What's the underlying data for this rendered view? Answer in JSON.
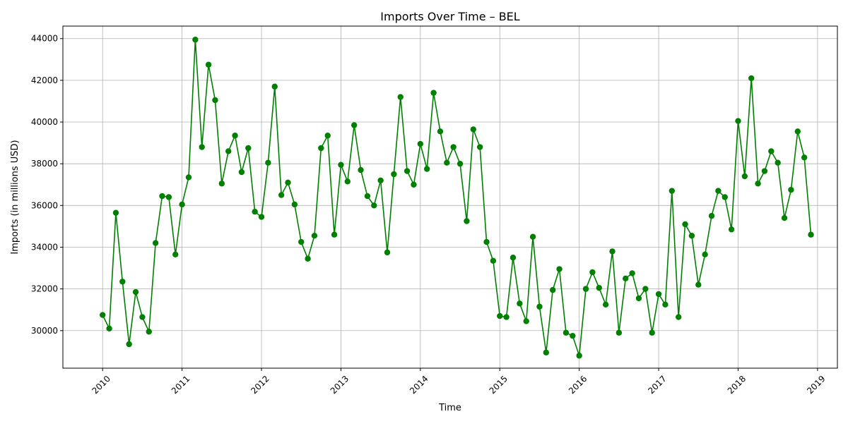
{
  "chart_data": {
    "type": "line",
    "title": "Imports Over Time – BEL",
    "xlabel": "Time",
    "ylabel": "Imports (in millions USD)",
    "x_ticks": [
      "2010",
      "2011",
      "2012",
      "2013",
      "2014",
      "2015",
      "2016",
      "2017",
      "2018",
      "2019"
    ],
    "y_ticks": [
      30000,
      32000,
      34000,
      36000,
      38000,
      40000,
      42000,
      44000
    ],
    "xlim": [
      "2009-07",
      "2019-04"
    ],
    "ylim": [
      28200,
      44600
    ],
    "grid": true,
    "color": "#008000",
    "series": [
      {
        "x": [
          "2010-01",
          "2010-02",
          "2010-03",
          "2010-04",
          "2010-05",
          "2010-06",
          "2010-07",
          "2010-08",
          "2010-09",
          "2010-10",
          "2010-11",
          "2010-12",
          "2011-01",
          "2011-02",
          "2011-03",
          "2011-04",
          "2011-05",
          "2011-06",
          "2011-07",
          "2011-08",
          "2011-09",
          "2011-10",
          "2011-11",
          "2011-12",
          "2012-01",
          "2012-02",
          "2012-03",
          "2012-04",
          "2012-05",
          "2012-06",
          "2012-07",
          "2012-08",
          "2012-09",
          "2012-10",
          "2012-11",
          "2012-12",
          "2013-01",
          "2013-02",
          "2013-03",
          "2013-04",
          "2013-05",
          "2013-06",
          "2013-07",
          "2013-08",
          "2013-09",
          "2013-10",
          "2013-11",
          "2013-12",
          "2014-01",
          "2014-02",
          "2014-03",
          "2014-04",
          "2014-05",
          "2014-06",
          "2014-07",
          "2014-08",
          "2014-09",
          "2014-10",
          "2014-11",
          "2014-12",
          "2015-01",
          "2015-02",
          "2015-03",
          "2015-04",
          "2015-05",
          "2015-06",
          "2015-07",
          "2015-08",
          "2015-09",
          "2015-10",
          "2015-11",
          "2015-12",
          "2016-01",
          "2016-02",
          "2016-03",
          "2016-04",
          "2016-05",
          "2016-06",
          "2016-07",
          "2016-08",
          "2016-09",
          "2016-10",
          "2016-11",
          "2016-12",
          "2017-01",
          "2017-02",
          "2017-03",
          "2017-04",
          "2017-05",
          "2017-06",
          "2017-07",
          "2017-08",
          "2017-09",
          "2017-10",
          "2017-11",
          "2017-12",
          "2018-01",
          "2018-02",
          "2018-03",
          "2018-04",
          "2018-05",
          "2018-06",
          "2018-07",
          "2018-08",
          "2018-09",
          "2018-10",
          "2018-11",
          "2018-12"
        ],
        "values": [
          30750,
          30100,
          35650,
          32350,
          29350,
          31850,
          30650,
          29950,
          34200,
          36450,
          36400,
          33650,
          36050,
          37350,
          43950,
          38800,
          42750,
          41050,
          37050,
          38600,
          39350,
          37600,
          38750,
          35700,
          35450,
          38050,
          41700,
          36500,
          37100,
          36050,
          34250,
          33450,
          34550,
          38750,
          39350,
          34600,
          37950,
          37150,
          39850,
          37700,
          36450,
          36000,
          37200,
          33750,
          37500,
          41200,
          37650,
          37000,
          38950,
          37750,
          41400,
          39550,
          38050,
          38800,
          38000,
          35250,
          39650,
          38800,
          34250,
          33350,
          30700,
          30650,
          33500,
          31300,
          30450,
          34500,
          31150,
          28950,
          31950,
          32950,
          29900,
          29750,
          28800,
          32000,
          32800,
          32050,
          31250,
          33800,
          29900,
          32500,
          32750,
          31550,
          32000,
          29900,
          31750,
          31250,
          36700,
          30650,
          35100,
          34550,
          32200,
          33650,
          35500,
          36700,
          36400,
          34850,
          40050,
          37400,
          42100,
          37050,
          37650,
          38600,
          38050,
          35400,
          36750,
          39550,
          38300,
          34600
        ]
      }
    ]
  }
}
